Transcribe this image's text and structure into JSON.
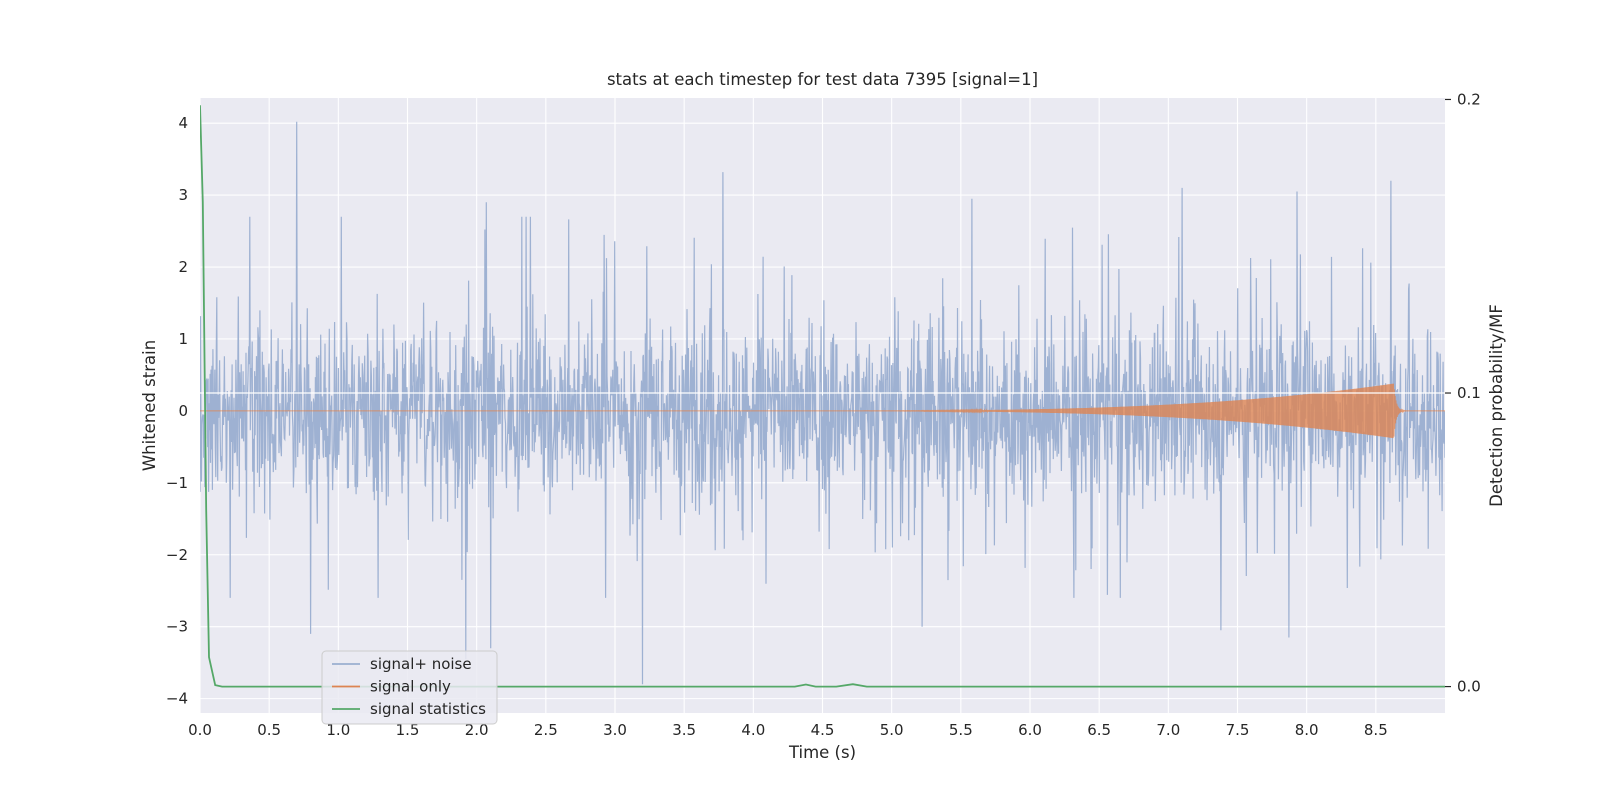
{
  "chart_data": {
    "type": "line",
    "title": "stats at each timestep for test data 7395 [signal=1]",
    "xlabel": "Time (s)",
    "ylabel": "Whitened strain",
    "y2label": "Detection probability/MF",
    "xlim": [
      0.0,
      9.0
    ],
    "ylim": [
      -4.2,
      4.35
    ],
    "y2lim": [
      -0.009,
      0.2005
    ],
    "x_ticks": [
      "0.0",
      "0.5",
      "1.0",
      "1.5",
      "2.0",
      "2.5",
      "3.0",
      "3.5",
      "4.0",
      "4.5",
      "5.0",
      "5.5",
      "6.0",
      "6.5",
      "7.0",
      "7.5",
      "8.0",
      "8.5"
    ],
    "y_ticks": [
      "4",
      "3",
      "2",
      "1",
      "0",
      "−1",
      "−2",
      "−3",
      "−4"
    ],
    "y2_ticks": [
      "0.2",
      "0.1",
      "0.0"
    ],
    "grid": true,
    "legend_position": "lower-left",
    "horizontal_line": {
      "axis": "y2",
      "value": 0.1
    },
    "series": [
      {
        "name": "signal+ noise",
        "color": "#9aaed0",
        "axis": "y",
        "description_points": {
          "typical_envelope": [
            -1.5,
            1.8
          ],
          "spikes": [
            {
              "x": 0.7,
              "y": 4.02
            },
            {
              "x": 0.8,
              "y": -3.1
            },
            {
              "x": 1.92,
              "y": -3.45
            },
            {
              "x": 2.07,
              "y": 2.9
            },
            {
              "x": 2.1,
              "y": -3.3
            },
            {
              "x": 3.2,
              "y": -3.8
            },
            {
              "x": 3.78,
              "y": 3.32
            },
            {
              "x": 5.22,
              "y": -3.0
            },
            {
              "x": 5.58,
              "y": 2.95
            },
            {
              "x": 7.1,
              "y": 3.1
            },
            {
              "x": 7.38,
              "y": -3.05
            },
            {
              "x": 7.87,
              "y": -3.15
            },
            {
              "x": 7.93,
              "y": 3.05
            },
            {
              "x": 8.61,
              "y": 3.2
            }
          ]
        }
      },
      {
        "name": "signal only",
        "color": "#dd8452",
        "axis": "y",
        "chirp": {
          "start": 4.2,
          "peak_time": 8.63,
          "peak_amplitude": 0.38,
          "end": 9.0
        }
      },
      {
        "name": "signal statistics",
        "color": "#55a868",
        "axis": "y2",
        "x": [
          0.0,
          0.02,
          0.045,
          0.065,
          0.11,
          0.16,
          4.3,
          4.38,
          4.45,
          4.6,
          4.72,
          4.82,
          4.9,
          9.0
        ],
        "values": [
          0.198,
          0.165,
          0.06,
          0.01,
          0.0005,
          0.0,
          0.0,
          0.0007,
          0.0,
          0.0,
          0.0008,
          0.0,
          0.0,
          0.0
        ]
      }
    ]
  }
}
